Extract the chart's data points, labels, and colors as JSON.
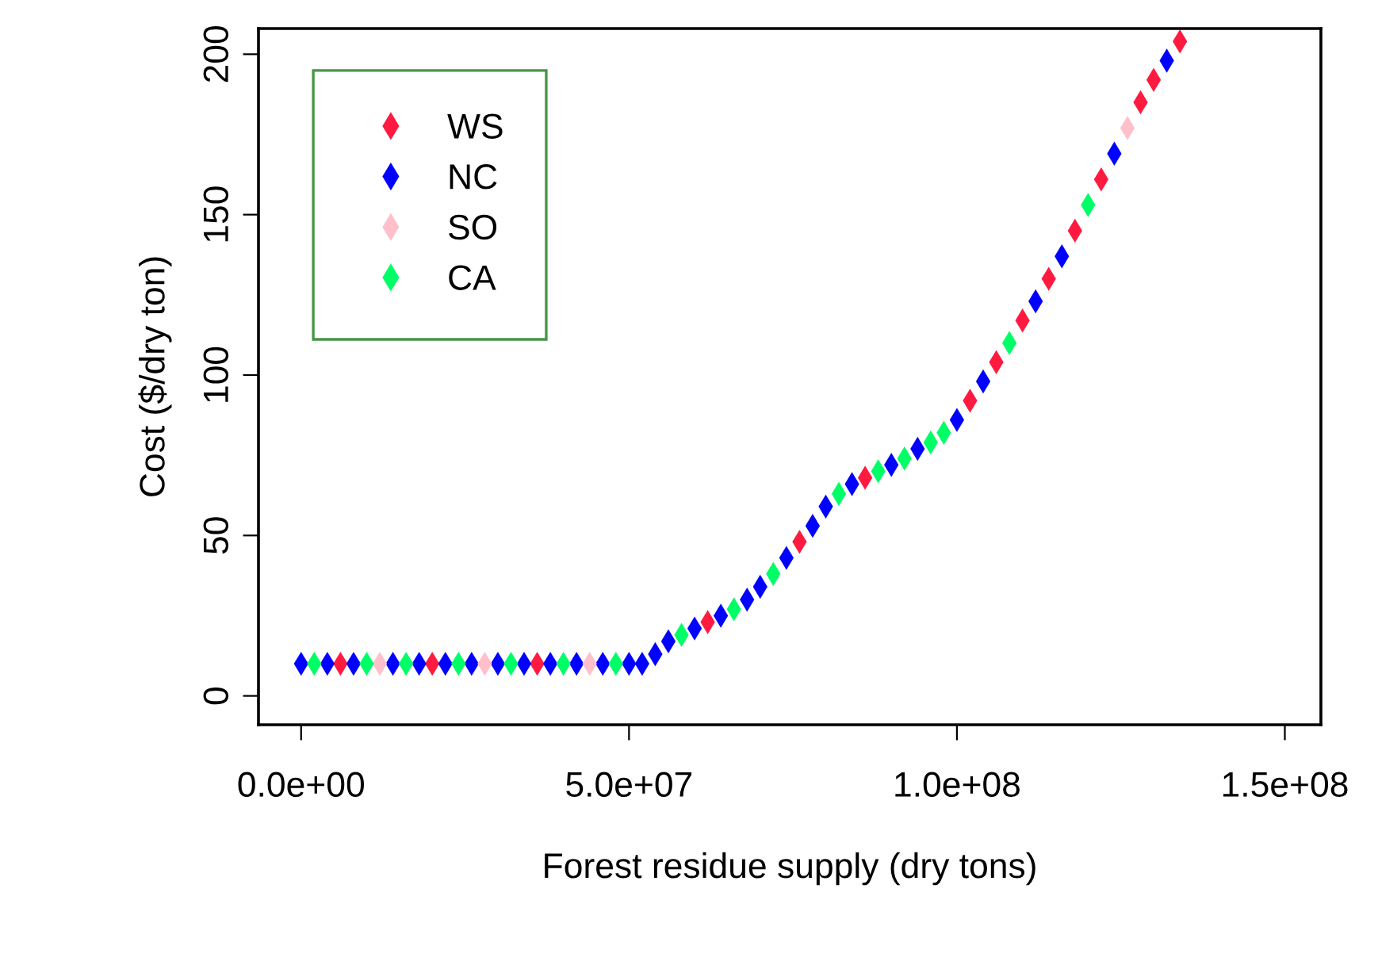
{
  "chart_data": {
    "type": "scatter",
    "xlabel": "Forest residue supply (dry tons)",
    "ylabel": "Cost ($/dry ton)",
    "xlim": [
      -6500000,
      155500000
    ],
    "ylim": [
      -9,
      208
    ],
    "xticks": [
      {
        "value": 0,
        "label": "0.0e+00"
      },
      {
        "value": 50000000,
        "label": "5.0e+07"
      },
      {
        "value": 100000000,
        "label": "1.0e+08"
      },
      {
        "value": 150000000,
        "label": "1.5e+08"
      }
    ],
    "yticks": [
      0,
      50,
      100,
      150,
      200
    ],
    "grid": false,
    "legend": "top left",
    "marker": "diamond",
    "x": [
      0,
      2000000,
      4000000,
      6000000,
      8000000,
      10000000,
      12000000,
      14000000,
      16000000,
      18000000,
      20000000,
      22000000,
      24000000,
      26000000,
      28000000,
      30000000,
      32000000,
      34000000,
      36000000,
      38000000,
      40000000,
      42000000,
      44000000,
      46000000,
      48000000,
      50000000,
      52000000,
      54000000,
      56000000,
      58000000,
      60000000,
      62000000,
      64000000,
      66000000,
      68000000,
      70000000,
      72000000,
      74000000,
      76000000,
      78000000,
      80000000,
      82000000,
      84000000,
      86000000,
      88000000,
      90000000,
      92000000,
      94000000,
      96000000,
      98000000,
      100000000,
      102000000,
      104000000,
      106000000,
      108000000,
      110000000,
      112000000,
      114000000,
      116000000,
      118000000,
      120000000,
      122000000,
      124000000,
      126000000,
      128000000,
      130000000,
      132000000,
      134000000
    ],
    "series": [
      {
        "name": "WS",
        "color": "#ff1a40",
        "values": [
          null,
          null,
          null,
          10,
          null,
          null,
          null,
          null,
          null,
          null,
          10,
          null,
          null,
          null,
          null,
          null,
          null,
          null,
          10,
          null,
          null,
          null,
          null,
          null,
          null,
          null,
          null,
          null,
          null,
          null,
          null,
          23,
          null,
          null,
          null,
          null,
          null,
          null,
          48,
          null,
          null,
          null,
          null,
          68,
          null,
          null,
          null,
          null,
          null,
          null,
          null,
          92,
          null,
          104,
          null,
          117,
          null,
          130,
          null,
          145,
          null,
          161,
          null,
          null,
          185,
          192,
          null,
          204
        ]
      },
      {
        "name": "NC",
        "color": "#0000ff",
        "values": [
          10,
          null,
          10,
          null,
          10,
          null,
          null,
          10,
          null,
          10,
          null,
          10,
          null,
          10,
          null,
          10,
          null,
          10,
          null,
          10,
          null,
          10,
          null,
          10,
          null,
          10,
          10,
          13,
          17,
          null,
          21,
          null,
          25,
          null,
          30,
          34,
          null,
          43,
          null,
          53,
          59,
          null,
          66,
          null,
          null,
          72,
          null,
          77,
          null,
          null,
          86,
          null,
          98,
          null,
          null,
          null,
          123,
          null,
          137,
          null,
          null,
          null,
          169,
          null,
          null,
          null,
          198,
          null
        ]
      },
      {
        "name": "SO",
        "color": "#ffc0cb",
        "values": [
          null,
          null,
          null,
          null,
          null,
          null,
          10,
          null,
          null,
          null,
          null,
          null,
          null,
          null,
          10,
          null,
          null,
          null,
          null,
          null,
          null,
          null,
          10,
          null,
          null,
          null,
          null,
          null,
          null,
          null,
          null,
          null,
          null,
          null,
          null,
          null,
          null,
          null,
          null,
          null,
          null,
          null,
          null,
          null,
          null,
          null,
          null,
          null,
          null,
          null,
          null,
          null,
          null,
          null,
          null,
          null,
          null,
          null,
          null,
          null,
          null,
          null,
          null,
          177,
          null,
          null,
          null,
          null
        ]
      },
      {
        "name": "CA",
        "color": "#00ff66",
        "values": [
          null,
          10,
          null,
          null,
          null,
          10,
          null,
          null,
          10,
          null,
          null,
          null,
          10,
          null,
          null,
          null,
          10,
          null,
          null,
          null,
          10,
          null,
          null,
          null,
          10,
          null,
          null,
          null,
          null,
          19,
          null,
          null,
          null,
          27,
          null,
          null,
          38,
          null,
          null,
          null,
          null,
          63,
          null,
          null,
          70,
          null,
          74,
          null,
          79,
          82,
          null,
          null,
          null,
          null,
          110,
          null,
          null,
          null,
          null,
          null,
          153,
          null,
          null,
          null,
          null,
          null,
          null,
          null
        ]
      }
    ]
  }
}
